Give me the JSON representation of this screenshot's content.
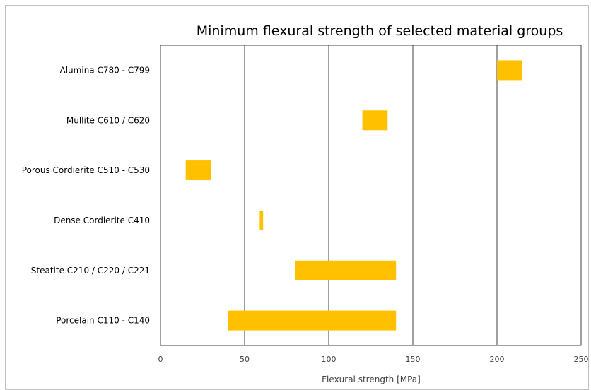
{
  "chart_data": {
    "type": "bar",
    "orientation": "horizontal",
    "subtype": "floating-range",
    "title": "Minimum flexural strength of selected material groups",
    "xlabel": "Flexural strength [MPa]",
    "ylabel": "",
    "xlim": [
      0,
      250
    ],
    "xticks": [
      "0",
      "50",
      "100",
      "150",
      "200",
      "250"
    ],
    "grid": "vertical major gridlines",
    "legend": "none",
    "bar_color": "#ffc000",
    "categories": [
      "Alumina C780 - C799",
      "Mullite C610 / C620",
      "Porous Cordierite C510 - C530",
      "Dense Cordierite C410",
      "Steatite C210 / C220 / C221",
      "Porcelain C110 - C140"
    ],
    "ranges": [
      [
        200,
        215
      ],
      [
        120,
        135
      ],
      [
        15,
        30
      ],
      [
        59,
        61
      ],
      [
        80,
        140
      ],
      [
        40,
        140
      ]
    ]
  }
}
